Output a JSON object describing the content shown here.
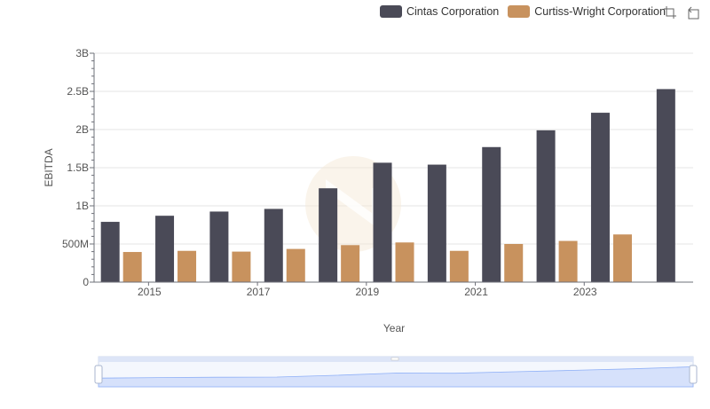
{
  "legend": {
    "series_a": "Cintas Corporation",
    "series_b": "Curtiss-Wright Corporation"
  },
  "toolbox": {
    "zoom": "zoom-icon",
    "restore": "restore-icon"
  },
  "colors": {
    "series_a": "#4a4a57",
    "series_b": "#c8925e",
    "grid": "#e6e6e6",
    "axis": "#6e7079",
    "slider_fill": "#d6e1fb",
    "slider_line": "#8fb0f7"
  },
  "chart_data": {
    "type": "bar",
    "xlabel": "Year",
    "ylabel": "EBITDA",
    "ylim": [
      0,
      3000000000
    ],
    "y_ticks": [
      "0",
      "500M",
      "1B",
      "1.5B",
      "2B",
      "2.5B",
      "3B"
    ],
    "x_tick_labels": [
      "2015",
      "2017",
      "2019",
      "2021",
      "2023"
    ],
    "categories": [
      "2014",
      "2015",
      "2016",
      "2017",
      "2018",
      "2019",
      "2020",
      "2021",
      "2022",
      "2023",
      "2024"
    ],
    "series": [
      {
        "name": "Cintas Corporation",
        "values": [
          790000000,
          870000000,
          925000000,
          960000000,
          1230000000,
          1565000000,
          1540000000,
          1770000000,
          1990000000,
          2220000000,
          2530000000
        ]
      },
      {
        "name": "Curtiss-Wright Corporation",
        "values": [
          395000000,
          410000000,
          400000000,
          435000000,
          485000000,
          520000000,
          410000000,
          500000000,
          540000000,
          625000000,
          null
        ]
      }
    ]
  }
}
